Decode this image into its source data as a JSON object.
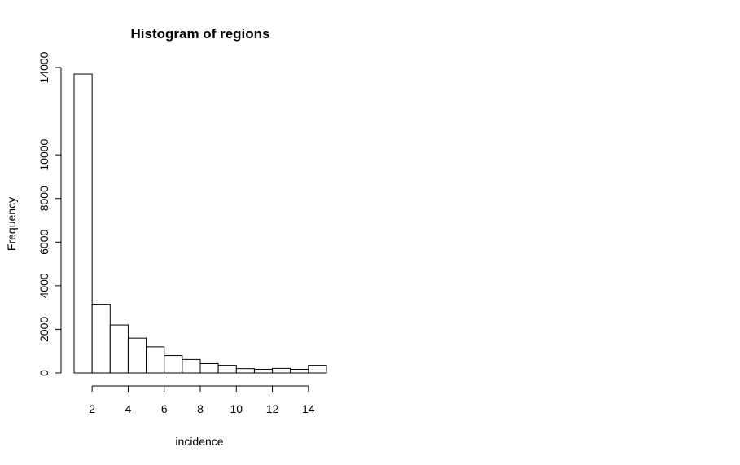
{
  "chart_data": {
    "type": "bar",
    "title": "Histogram of regions",
    "xlabel": "incidence",
    "ylabel": "Frequency",
    "bins": [
      {
        "x0": 1,
        "x1": 2,
        "count": 13700
      },
      {
        "x0": 2,
        "x1": 3,
        "count": 3150
      },
      {
        "x0": 3,
        "x1": 4,
        "count": 2200
      },
      {
        "x0": 4,
        "x1": 5,
        "count": 1600
      },
      {
        "x0": 5,
        "x1": 6,
        "count": 1200
      },
      {
        "x0": 6,
        "x1": 7,
        "count": 800
      },
      {
        "x0": 7,
        "x1": 8,
        "count": 620
      },
      {
        "x0": 8,
        "x1": 9,
        "count": 430
      },
      {
        "x0": 9,
        "x1": 10,
        "count": 350
      },
      {
        "x0": 10,
        "x1": 11,
        "count": 200
      },
      {
        "x0": 11,
        "x1": 12,
        "count": 170
      },
      {
        "x0": 12,
        "x1": 13,
        "count": 210
      },
      {
        "x0": 13,
        "x1": 14,
        "count": 170
      },
      {
        "x0": 14,
        "x1": 15,
        "count": 350
      }
    ],
    "xlim": [
      1,
      15
    ],
    "ylim": [
      0,
      14000
    ],
    "x_ticks": [
      2,
      4,
      6,
      8,
      10,
      12,
      14
    ],
    "y_ticks": [
      0,
      2000,
      4000,
      6000,
      8000,
      10000,
      14000
    ],
    "grid": false
  }
}
